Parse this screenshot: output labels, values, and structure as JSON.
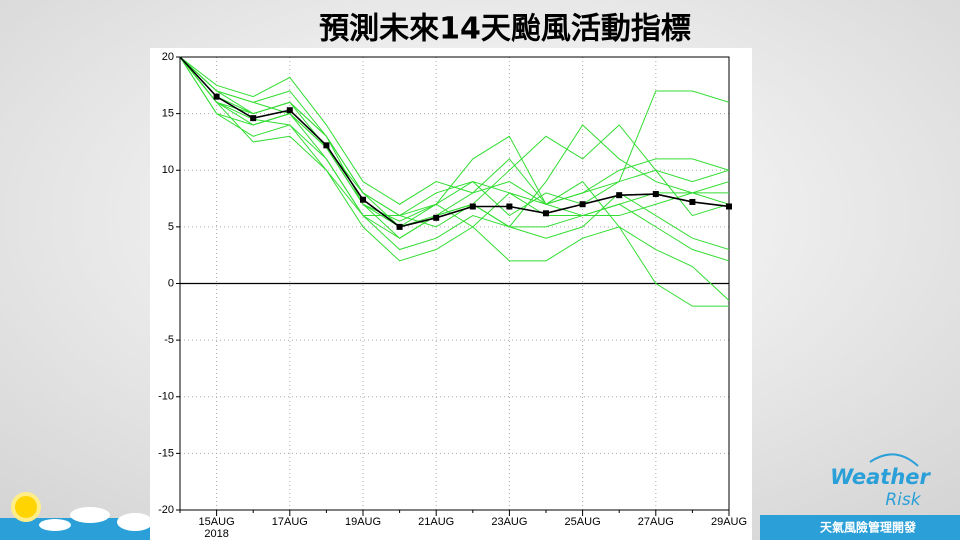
{
  "chart_data": {
    "type": "line",
    "title": "預測未來14天颱風活動指標",
    "categories": [
      null,
      "15AUG",
      null,
      "17AUG",
      null,
      "19AUG",
      null,
      "21AUG",
      null,
      "23AUG",
      null,
      "25AUG",
      null,
      "27AUG",
      null,
      "29AUG"
    ],
    "x_sublabel": "2018",
    "ylim": [
      -20,
      20
    ],
    "yticks": [
      20,
      15,
      10,
      5,
      0,
      -5,
      -10,
      -15,
      -20
    ],
    "grid": true,
    "series": [
      {
        "color": "#33dd33",
        "values": [
          20,
          17.5,
          16.5,
          18.2,
          14,
          9,
          7,
          9,
          8,
          11,
          7,
          8,
          9,
          10,
          9,
          10
        ]
      },
      {
        "color": "#33dd33",
        "values": [
          20,
          16,
          15,
          16,
          13,
          8,
          5,
          7,
          5,
          8,
          6,
          6,
          7,
          8,
          8,
          8
        ]
      },
      {
        "color": "#33dd33",
        "values": [
          20,
          15,
          13,
          14,
          11,
          6,
          3,
          4,
          6,
          5,
          9,
          14,
          11,
          9,
          8,
          7
        ]
      },
      {
        "color": "#33dd33",
        "values": [
          20,
          17,
          16,
          17,
          13,
          8,
          6,
          8,
          9,
          6,
          8,
          7,
          9,
          17,
          17,
          16
        ]
      },
      {
        "color": "#33dd33",
        "values": [
          20,
          16,
          14.5,
          14,
          10,
          5,
          2,
          3,
          5,
          2,
          2,
          4,
          5,
          3,
          1.5,
          -1.5
        ]
      },
      {
        "color": "#33dd33",
        "values": [
          20,
          17,
          16,
          15,
          12,
          7,
          4,
          6,
          7,
          5,
          5,
          6,
          7,
          5,
          3,
          2
        ]
      },
      {
        "color": "#33dd33",
        "values": [
          20,
          16,
          12.5,
          13,
          10,
          6,
          6,
          5,
          7,
          10,
          13,
          11,
          14,
          10,
          6,
          7
        ]
      },
      {
        "color": "#33dd33",
        "values": [
          20,
          15,
          14,
          15,
          12,
          8,
          6,
          7,
          9,
          8,
          7,
          6,
          6,
          7,
          8,
          9
        ]
      },
      {
        "color": "#33dd33",
        "values": [
          20,
          17,
          15,
          16,
          13,
          7,
          5,
          6,
          8,
          9,
          7,
          9,
          5,
          0,
          -2,
          -2
        ]
      },
      {
        "color": "#33dd33",
        "values": [
          20,
          16,
          14,
          15,
          11,
          6,
          4,
          6,
          7,
          5,
          4,
          5,
          8,
          6,
          4,
          3
        ]
      },
      {
        "color": "#33dd33",
        "values": [
          20,
          16.5,
          15,
          16,
          12,
          7,
          5.5,
          7,
          11,
          13,
          7,
          8,
          10,
          11,
          11,
          10
        ]
      },
      {
        "color": "#000000",
        "marker": "square",
        "values": [
          20,
          16.5,
          14.6,
          15.3,
          12.2,
          7.4,
          5.0,
          5.8,
          6.8,
          6.8,
          6.2,
          7.0,
          7.8,
          7.9,
          7.2,
          6.8
        ]
      }
    ]
  },
  "footer": {
    "logo": [
      "Weather",
      "Risk"
    ],
    "company": "天氣風險管理開發"
  }
}
